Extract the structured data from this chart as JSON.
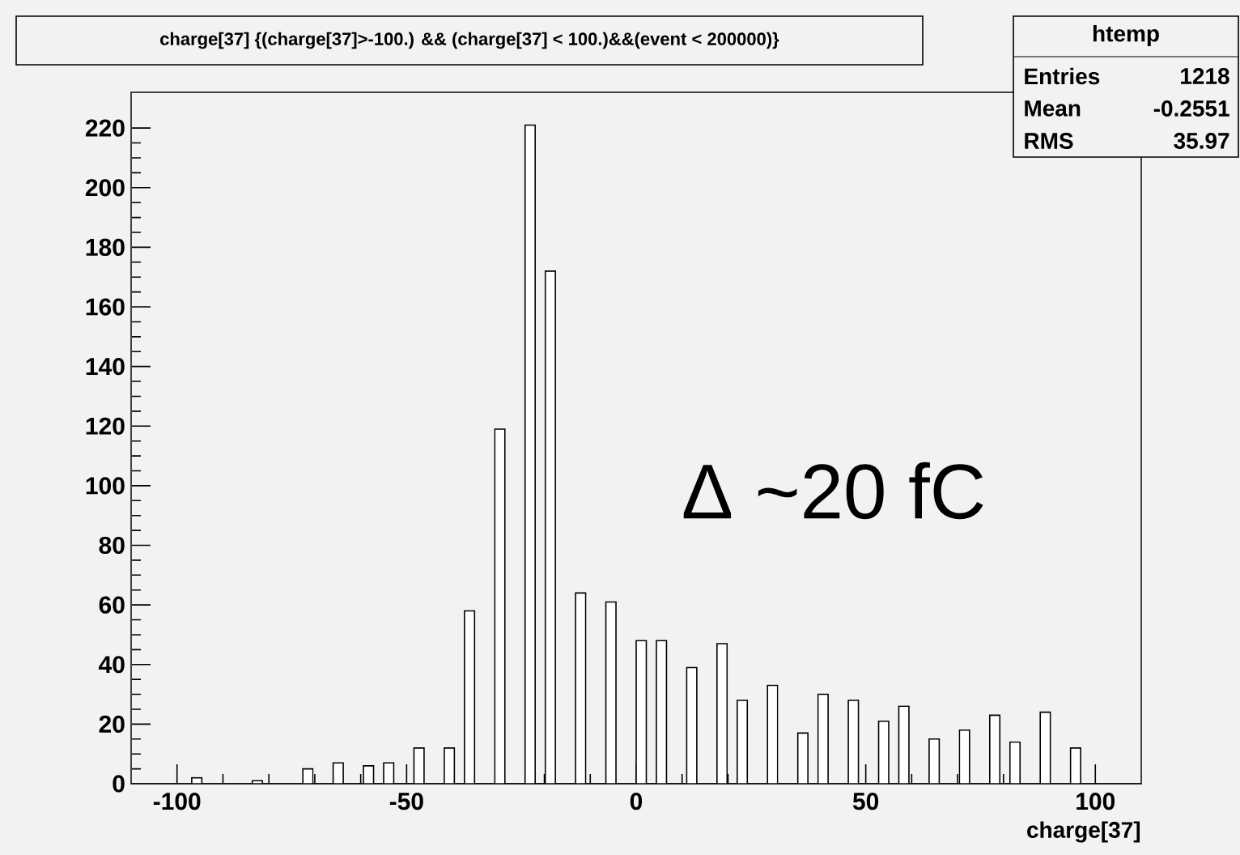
{
  "chart_data": {
    "type": "histogram",
    "title": "charge[37] {(charge[37]>-100.) && (charge[37] < 100.)&&(event < 200000)}",
    "xlabel": "charge[37]",
    "color": "#ffffff",
    "bins": [
      -110,
      -107.8,
      -105.6,
      -103.4,
      -101.2,
      -99,
      -96.8,
      -94.6,
      -92.4,
      -90.2,
      -88,
      -85.8,
      -83.6,
      -81.4,
      -79.2,
      -77,
      -74.8,
      -72.6,
      -70.4,
      -68.2,
      -66,
      -63.8,
      -61.6,
      -59.4,
      -57.2,
      -55,
      -52.8,
      -50.6,
      -48.4,
      -46.2,
      -44,
      -41.8,
      -39.6,
      -37.4,
      -35.2,
      -33,
      -30.8,
      -28.6,
      -26.4,
      -24.2,
      -22,
      -19.8,
      -17.6,
      -15.4,
      -13.2,
      -11,
      -8.8,
      -6.6,
      -4.4,
      -2.2,
      0,
      2.2,
      4.4,
      6.6,
      8.8,
      11,
      13.2,
      15.4,
      17.6,
      19.8,
      22,
      24.2,
      26.4,
      28.6,
      30.8,
      33,
      35.2,
      37.4,
      39.6,
      41.8,
      44,
      46.2,
      48.4,
      50.6,
      52.8,
      55,
      57.2,
      59.4,
      61.6,
      63.8,
      66,
      68.2,
      70.4,
      72.6,
      74.8,
      77,
      79.2,
      81.4,
      83.6,
      85.8,
      88,
      90.2,
      92.4,
      94.6,
      96.8,
      99,
      101.2,
      103.4,
      105.6,
      107.8,
      110
    ],
    "values": [
      0,
      0,
      0,
      0,
      0,
      0,
      2,
      0,
      0,
      0,
      0,
      0,
      1,
      0,
      0,
      0,
      0,
      5,
      0,
      0,
      7,
      0,
      0,
      6,
      0,
      7,
      0,
      0,
      12,
      0,
      0,
      12,
      0,
      58,
      0,
      0,
      119,
      0,
      0,
      221,
      0,
      172,
      0,
      0,
      64,
      0,
      0,
      61,
      0,
      0,
      48,
      0,
      48,
      0,
      0,
      39,
      0,
      0,
      47,
      0,
      28,
      0,
      0,
      33,
      0,
      0,
      17,
      0,
      30,
      0,
      0,
      28,
      0,
      0,
      21,
      0,
      26,
      0,
      0,
      15,
      0,
      0,
      18,
      0,
      0,
      23,
      0,
      14,
      0,
      0,
      24,
      0,
      0,
      12,
      0,
      0,
      0,
      0,
      0,
      0
    ],
    "xlim": [
      -110,
      110
    ],
    "ylim": [
      0,
      232
    ],
    "xticks": [
      -100,
      -50,
      0,
      50,
      100
    ],
    "yticks": [
      0,
      20,
      40,
      60,
      80,
      100,
      120,
      140,
      160,
      180,
      200,
      220
    ],
    "annotations": [
      "htemp",
      "Entries",
      "1218",
      "Mean",
      "-0.2551",
      "RMS",
      "35.97",
      "Δ ~20 fC"
    ]
  }
}
